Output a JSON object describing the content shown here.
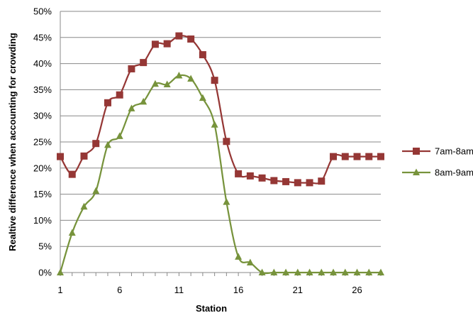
{
  "chart_data": {
    "type": "line",
    "xlabel": "Station",
    "ylabel": "Realtive difference when accounting for crowding",
    "x_ticks": [
      1,
      6,
      11,
      16,
      21,
      26
    ],
    "y_ticks": [
      "0%",
      "5%",
      "10%",
      "15%",
      "20%",
      "25%",
      "30%",
      "35%",
      "40%",
      "45%",
      "50%"
    ],
    "xlim": [
      1,
      28
    ],
    "ylim": [
      0,
      50
    ],
    "grid": "horizontal",
    "legend_position": "right",
    "x": [
      1,
      2,
      3,
      4,
      5,
      6,
      7,
      8,
      9,
      10,
      11,
      12,
      13,
      14,
      15,
      16,
      17,
      18,
      19,
      20,
      21,
      22,
      23,
      24,
      25,
      26,
      27,
      28
    ],
    "series": [
      {
        "name": "7am-8am",
        "color": "#953735",
        "marker": "square",
        "values": [
          22.2,
          18.8,
          22.3,
          24.7,
          32.5,
          34.0,
          39.0,
          40.2,
          43.7,
          43.8,
          45.3,
          44.7,
          41.7,
          36.8,
          25.1,
          18.9,
          18.5,
          18.1,
          17.6,
          17.4,
          17.2,
          17.2,
          17.5,
          22.2,
          22.2,
          22.2,
          22.2,
          22.2
        ]
      },
      {
        "name": "8am-9am",
        "color": "#77933C",
        "marker": "triangle",
        "values": [
          0,
          7.6,
          12.6,
          15.6,
          24.4,
          26.1,
          31.4,
          32.7,
          36.1,
          36.0,
          37.7,
          37.1,
          33.4,
          28.3,
          13.5,
          3.0,
          1.9,
          0,
          0,
          0,
          0,
          0,
          0,
          0,
          0,
          0,
          0,
          0
        ]
      }
    ]
  }
}
